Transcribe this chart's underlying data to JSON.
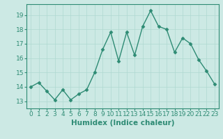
{
  "x": [
    0,
    1,
    2,
    3,
    4,
    5,
    6,
    7,
    8,
    9,
    10,
    11,
    12,
    13,
    14,
    15,
    16,
    17,
    18,
    19,
    20,
    21,
    22,
    23
  ],
  "y": [
    14.0,
    14.3,
    13.7,
    13.1,
    13.8,
    13.1,
    13.5,
    13.8,
    15.0,
    16.6,
    17.8,
    15.8,
    17.8,
    16.2,
    18.2,
    19.3,
    18.2,
    18.0,
    16.4,
    17.4,
    17.0,
    15.9,
    15.1,
    14.2
  ],
  "line_color": "#2e8b74",
  "marker": "D",
  "markersize": 2.5,
  "linewidth": 1.0,
  "xlabel": "Humidex (Indice chaleur)",
  "xlim": [
    -0.5,
    23.5
  ],
  "ylim": [
    12.5,
    19.75
  ],
  "yticks": [
    13,
    14,
    15,
    16,
    17,
    18,
    19
  ],
  "xticks": [
    0,
    1,
    2,
    3,
    4,
    5,
    6,
    7,
    8,
    9,
    10,
    11,
    12,
    13,
    14,
    15,
    16,
    17,
    18,
    19,
    20,
    21,
    22,
    23
  ],
  "bg_color": "#cce9e4",
  "grid_color": "#afd8d0",
  "axis_color": "#2e8b74",
  "tick_color": "#2e8b74",
  "label_fontsize": 6.5,
  "xlabel_fontsize": 7.5
}
